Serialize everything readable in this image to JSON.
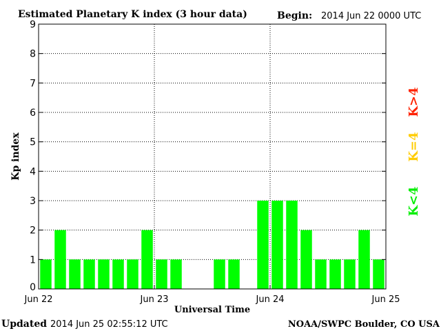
{
  "chart_data": {
    "type": "bar",
    "title": "Estimated Planetary K index (3 hour data)",
    "begin_label": "Begin:",
    "begin_value": "2014 Jun 22 0000 UTC",
    "xlabel": "Universal Time",
    "ylabel": "Kp index",
    "ylim": [
      0,
      9
    ],
    "yticks": [
      "0",
      "1",
      "2",
      "3",
      "4",
      "5",
      "6",
      "7",
      "8",
      "9"
    ],
    "xtick_labels": [
      "Jun 22",
      "Jun 23",
      "Jun 24",
      "Jun 25"
    ],
    "values": [
      1,
      2,
      1,
      1,
      1,
      1,
      1,
      2,
      1,
      1,
      null,
      null,
      1,
      1,
      null,
      3,
      3,
      3,
      2,
      1,
      1,
      1,
      2,
      1
    ],
    "legend": [
      {
        "label": "K<4",
        "color": "#00ee00"
      },
      {
        "label": "K=4",
        "color": "#ffcc00"
      },
      {
        "label": "K>4",
        "color": "#ff2200"
      }
    ],
    "bar_color": "#00ff00",
    "grid": "dotted",
    "legend_placement": "right"
  },
  "footer": {
    "updated_label": "Updated",
    "updated_value": "2014 Jun 25 02:55:12 UTC",
    "source": "NOAA/SWPC Boulder, CO USA"
  }
}
